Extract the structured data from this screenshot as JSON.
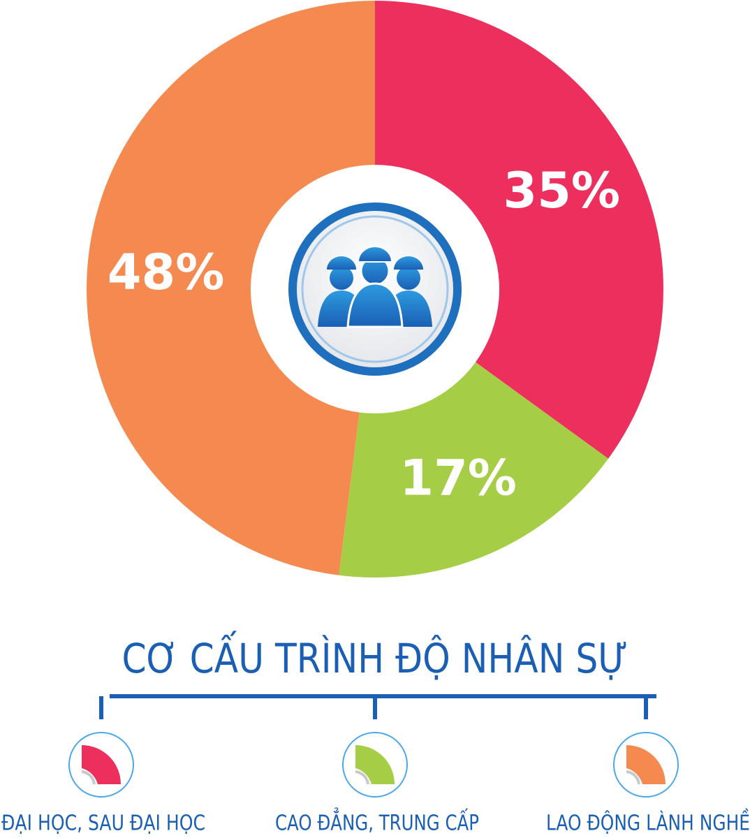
{
  "chart_data": {
    "type": "pie",
    "title": "CƠ CẤU TRÌNH ĐỘ NHÂN SỰ",
    "categories": [
      "ĐẠI HỌC, SAU ĐẠI HỌC",
      "CAO ĐẲNG, TRUNG CẤP",
      "LAO ĐỘNG LÀNH NGHỀ"
    ],
    "values": [
      35,
      17,
      48
    ],
    "value_labels": [
      "35%",
      "17%",
      "48%"
    ],
    "colors": [
      "#ec2f5c",
      "#a6cd46",
      "#f58a51"
    ]
  }
}
